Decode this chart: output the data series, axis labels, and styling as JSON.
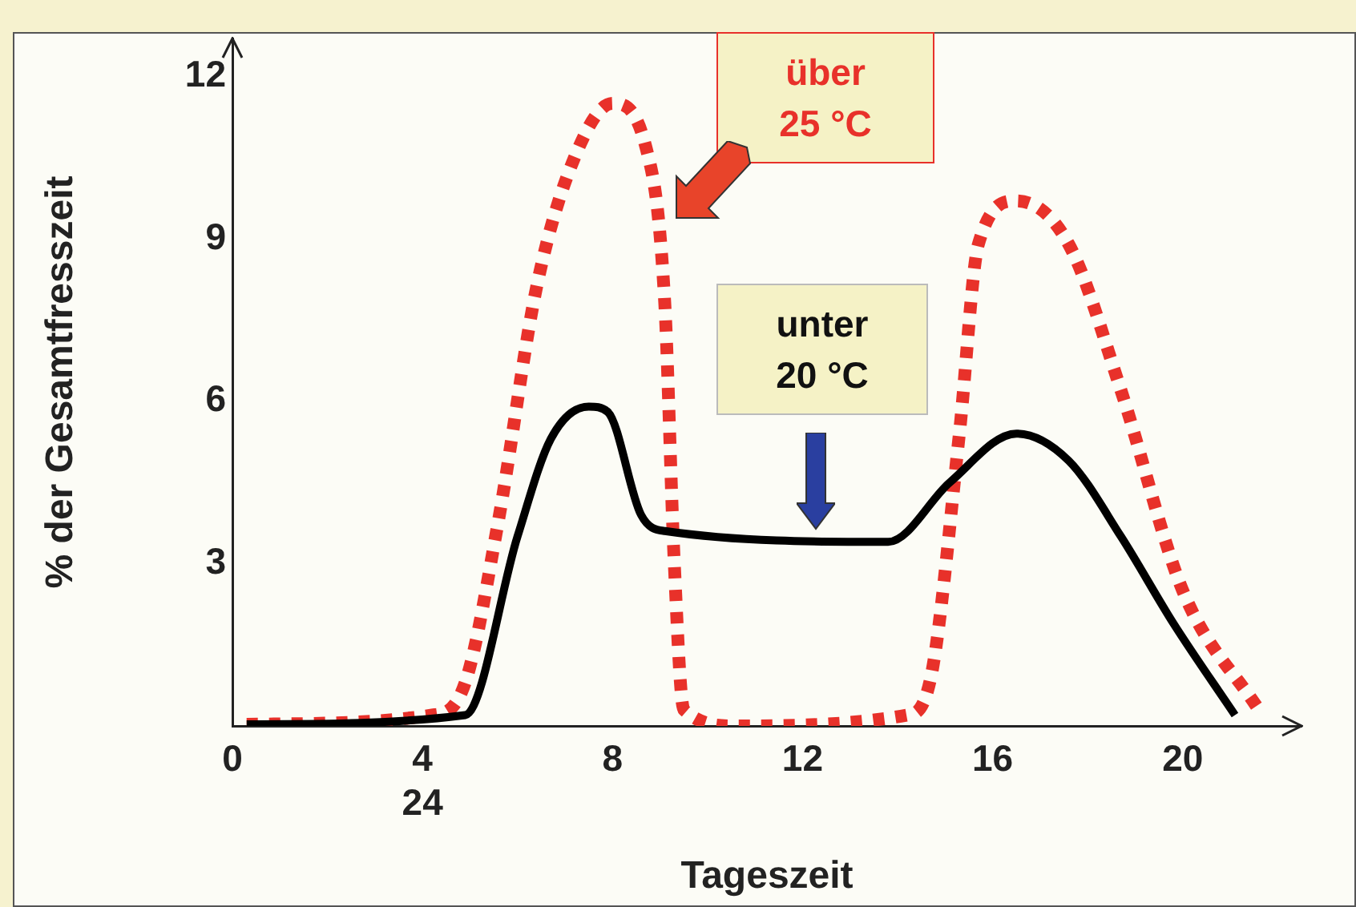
{
  "chart_data": {
    "type": "line",
    "xlabel": "Tageszeit",
    "ylabel": "% der Gesamtfresszeit",
    "xlim": [
      0,
      22.5
    ],
    "ylim": [
      0,
      12.7
    ],
    "xticks": [
      0,
      {
        "value": 4,
        "label": "4\n24"
      },
      8,
      12,
      16,
      20
    ],
    "yticks": [
      3,
      6,
      9,
      12
    ],
    "grid": false,
    "legend": false,
    "marker": "none",
    "series": [
      {
        "name": "über 25 °C",
        "color": "#e8312a",
        "line_style": "dotted",
        "x": [
          0.3,
          4.2,
          4.9,
          5.6,
          6.4,
          7.2,
          8.0,
          8.7,
          9.1,
          9.3,
          9.5,
          10.6,
          14.2,
          14.7,
          15.3,
          15.7,
          16.5,
          17.6,
          18.7,
          20.0,
          21.6
        ],
        "values": [
          0.03,
          0.2,
          0.8,
          3.8,
          8.1,
          10.5,
          11.5,
          10.7,
          7.8,
          3.0,
          0.3,
          0,
          0.2,
          0.9,
          5.4,
          8.9,
          9.7,
          8.9,
          6.2,
          2.5,
          0.3
        ]
      },
      {
        "name": "unter 20 °C",
        "color": "#000000",
        "line_style": "solid",
        "x": [
          0.3,
          4.9,
          6.0,
          6.7,
          7.5,
          7.9,
          8.6,
          9.1,
          13.8,
          15.1,
          16.5,
          17.6,
          18.7,
          19.8,
          21.1
        ],
        "values": [
          0.03,
          0.2,
          3.5,
          5.3,
          5.9,
          5.8,
          3.9,
          3.6,
          3.4,
          4.5,
          5.4,
          4.9,
          3.5,
          1.9,
          0.2
        ]
      }
    ]
  }
}
